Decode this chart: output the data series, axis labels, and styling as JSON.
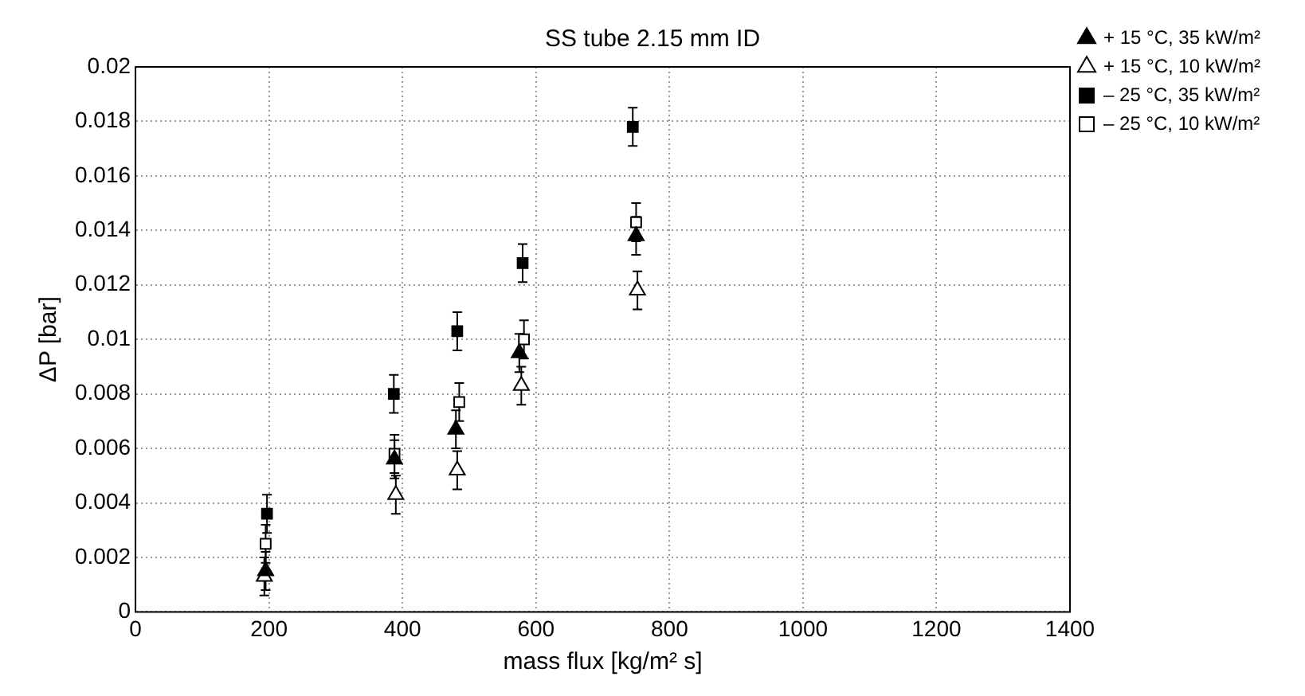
{
  "chart_data": {
    "type": "scatter",
    "title": "SS tube 2.15 mm ID",
    "xlabel": "mass flux [kg/m² s]",
    "ylabel": "ΔP [bar]",
    "xlim": [
      0,
      1400
    ],
    "xticks": [
      0,
      200,
      400,
      600,
      800,
      1000,
      1200,
      1400
    ],
    "ylim": [
      0,
      0.02
    ],
    "yticks": [
      0,
      0.002,
      0.004,
      0.006,
      0.008,
      0.01,
      0.012,
      0.014,
      0.016,
      0.018,
      0.02
    ],
    "grid": true,
    "legend": "top right",
    "series": [
      {
        "name": "+ 15 °C, 35 kW/m²",
        "color": "#000000",
        "marker": "triangle",
        "x": [
          195,
          388,
          480,
          575,
          750
        ],
        "values": [
          0.0015,
          0.0056,
          0.0067,
          0.0095,
          0.0138
        ],
        "errors": [
          0.0007,
          0.0007,
          0.0007,
          0.0007,
          0.0007
        ]
      },
      {
        "name": "+ 15 °C, 10 kW/m²",
        "color": "#000000",
        "marker": "triangle",
        "x": [
          193,
          390,
          482,
          578,
          752
        ],
        "values": [
          0.0013,
          0.0043,
          0.0052,
          0.0083,
          0.0118
        ],
        "errors": [
          0.0007,
          0.0007,
          0.0007,
          0.0007,
          0.0007
        ]
      },
      {
        "name": "– 25 °C, 35 kW/m²",
        "color": "#000000",
        "marker": "square",
        "x": [
          197,
          387,
          482,
          580,
          745
        ],
        "values": [
          0.0036,
          0.008,
          0.0103,
          0.0128,
          0.0178
        ],
        "errors": [
          0.0007,
          0.0007,
          0.0007,
          0.0007,
          0.0007
        ]
      },
      {
        "name": "– 25 °C, 10 kW/m²",
        "color": "#000000",
        "marker": "square",
        "x": [
          195,
          388,
          485,
          582,
          750
        ],
        "values": [
          0.0025,
          0.0058,
          0.0077,
          0.01,
          0.0143
        ],
        "errors": [
          0.0007,
          0.0007,
          0.0007,
          0.0007,
          0.0007
        ]
      }
    ]
  }
}
